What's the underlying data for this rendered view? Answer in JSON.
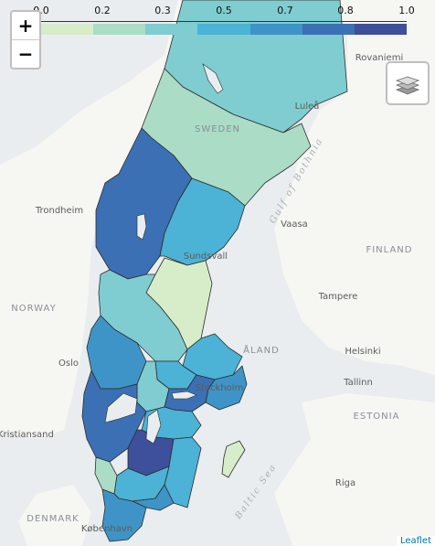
{
  "legend": {
    "ticks": [
      "0.0",
      "0.2",
      "0.3",
      "0.5",
      "0.7",
      "0.8",
      "1.0"
    ],
    "colors": [
      "#d7edc9",
      "#aadcc6",
      "#7fcdd0",
      "#4cb2d6",
      "#3f94c7",
      "#3b70b4",
      "#3e4f9b"
    ]
  },
  "controls": {
    "zoom_in": "+",
    "zoom_out": "−",
    "layers_icon": "layers-icon"
  },
  "labels": {
    "sweden": "SWEDEN",
    "norway": "NORWAY",
    "finland": "FINLAND",
    "aland": "ÅLAND",
    "estonia": "ESTONIA",
    "denmark": "DENMARK",
    "trondheim": "Trondheim",
    "oslo": "Oslo",
    "stockholm": "Stockholm",
    "vaasa": "Vaasa",
    "tampere": "Tampere",
    "helsinki": "Helsinki",
    "tallinn": "Tallinn",
    "riga": "Riga",
    "rovaniemi": "Rovaniemi",
    "lulea": "Luleå",
    "sundsvall": "Sundsvall",
    "kobenhavn": "København",
    "kristiansand": "Kristiansand",
    "gulf": "Gulf of Bothnia",
    "baltic": "Baltic Sea"
  },
  "attribution": "Leaflet"
}
